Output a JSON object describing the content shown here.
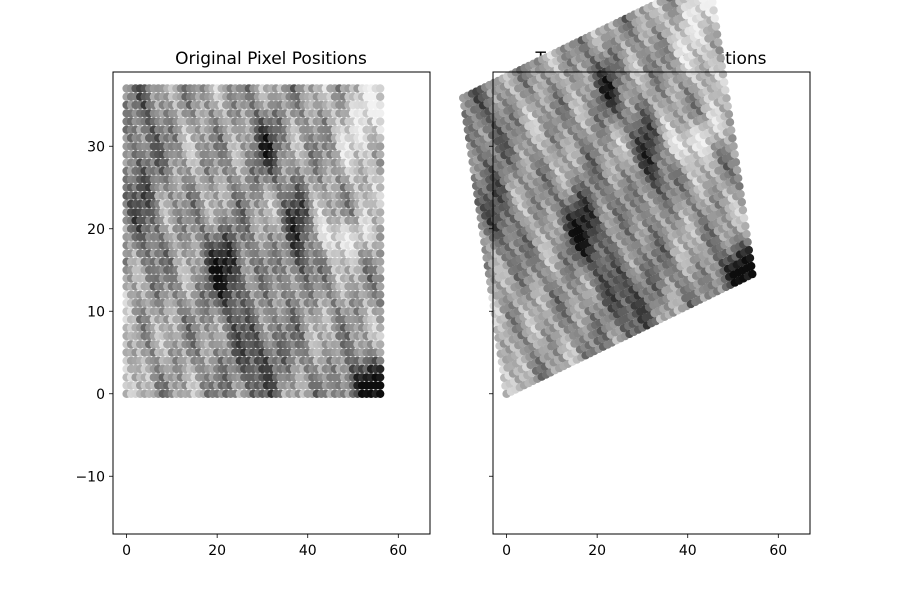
{
  "chart_data": [
    {
      "type": "scatter",
      "title": "Original Pixel Positions",
      "xlabel": "",
      "ylabel": "",
      "xlim": [
        -3,
        67
      ],
      "ylim": [
        -17,
        39
      ],
      "x_ticks": [
        0,
        20,
        40,
        60
      ],
      "y_ticks": [
        -10,
        0,
        10,
        20,
        30
      ],
      "x_tick_labels": [
        "0",
        "20",
        "40",
        "60"
      ],
      "y_tick_labels": [
        "−10",
        "0",
        "10",
        "20",
        "30"
      ],
      "grid": false,
      "colormap": "gray",
      "grid_x": [
        0,
        56
      ],
      "grid_y": [
        0,
        37
      ],
      "grid_step": 1,
      "transform": null
    },
    {
      "type": "scatter",
      "title": "Transformed Pixel Positions",
      "xlabel": "",
      "ylabel": "",
      "xlim": [
        -3,
        67
      ],
      "ylim": [
        -17,
        39
      ],
      "x_ticks": [
        0,
        20,
        40,
        60
      ],
      "y_ticks": [
        -10,
        0,
        10,
        20,
        30
      ],
      "x_tick_labels": [
        "0",
        "20",
        "40",
        "60"
      ],
      "y_tick_labels": [
        "",
        "",
        "",
        "",
        ""
      ],
      "grid": false,
      "colormap": "gray",
      "grid_x": [
        0,
        56
      ],
      "grid_y": [
        0,
        37
      ],
      "grid_step": 1,
      "transform": {
        "a": 0.969,
        "b": 0.259,
        "c": -0.259,
        "d": 0.969
      }
    }
  ]
}
